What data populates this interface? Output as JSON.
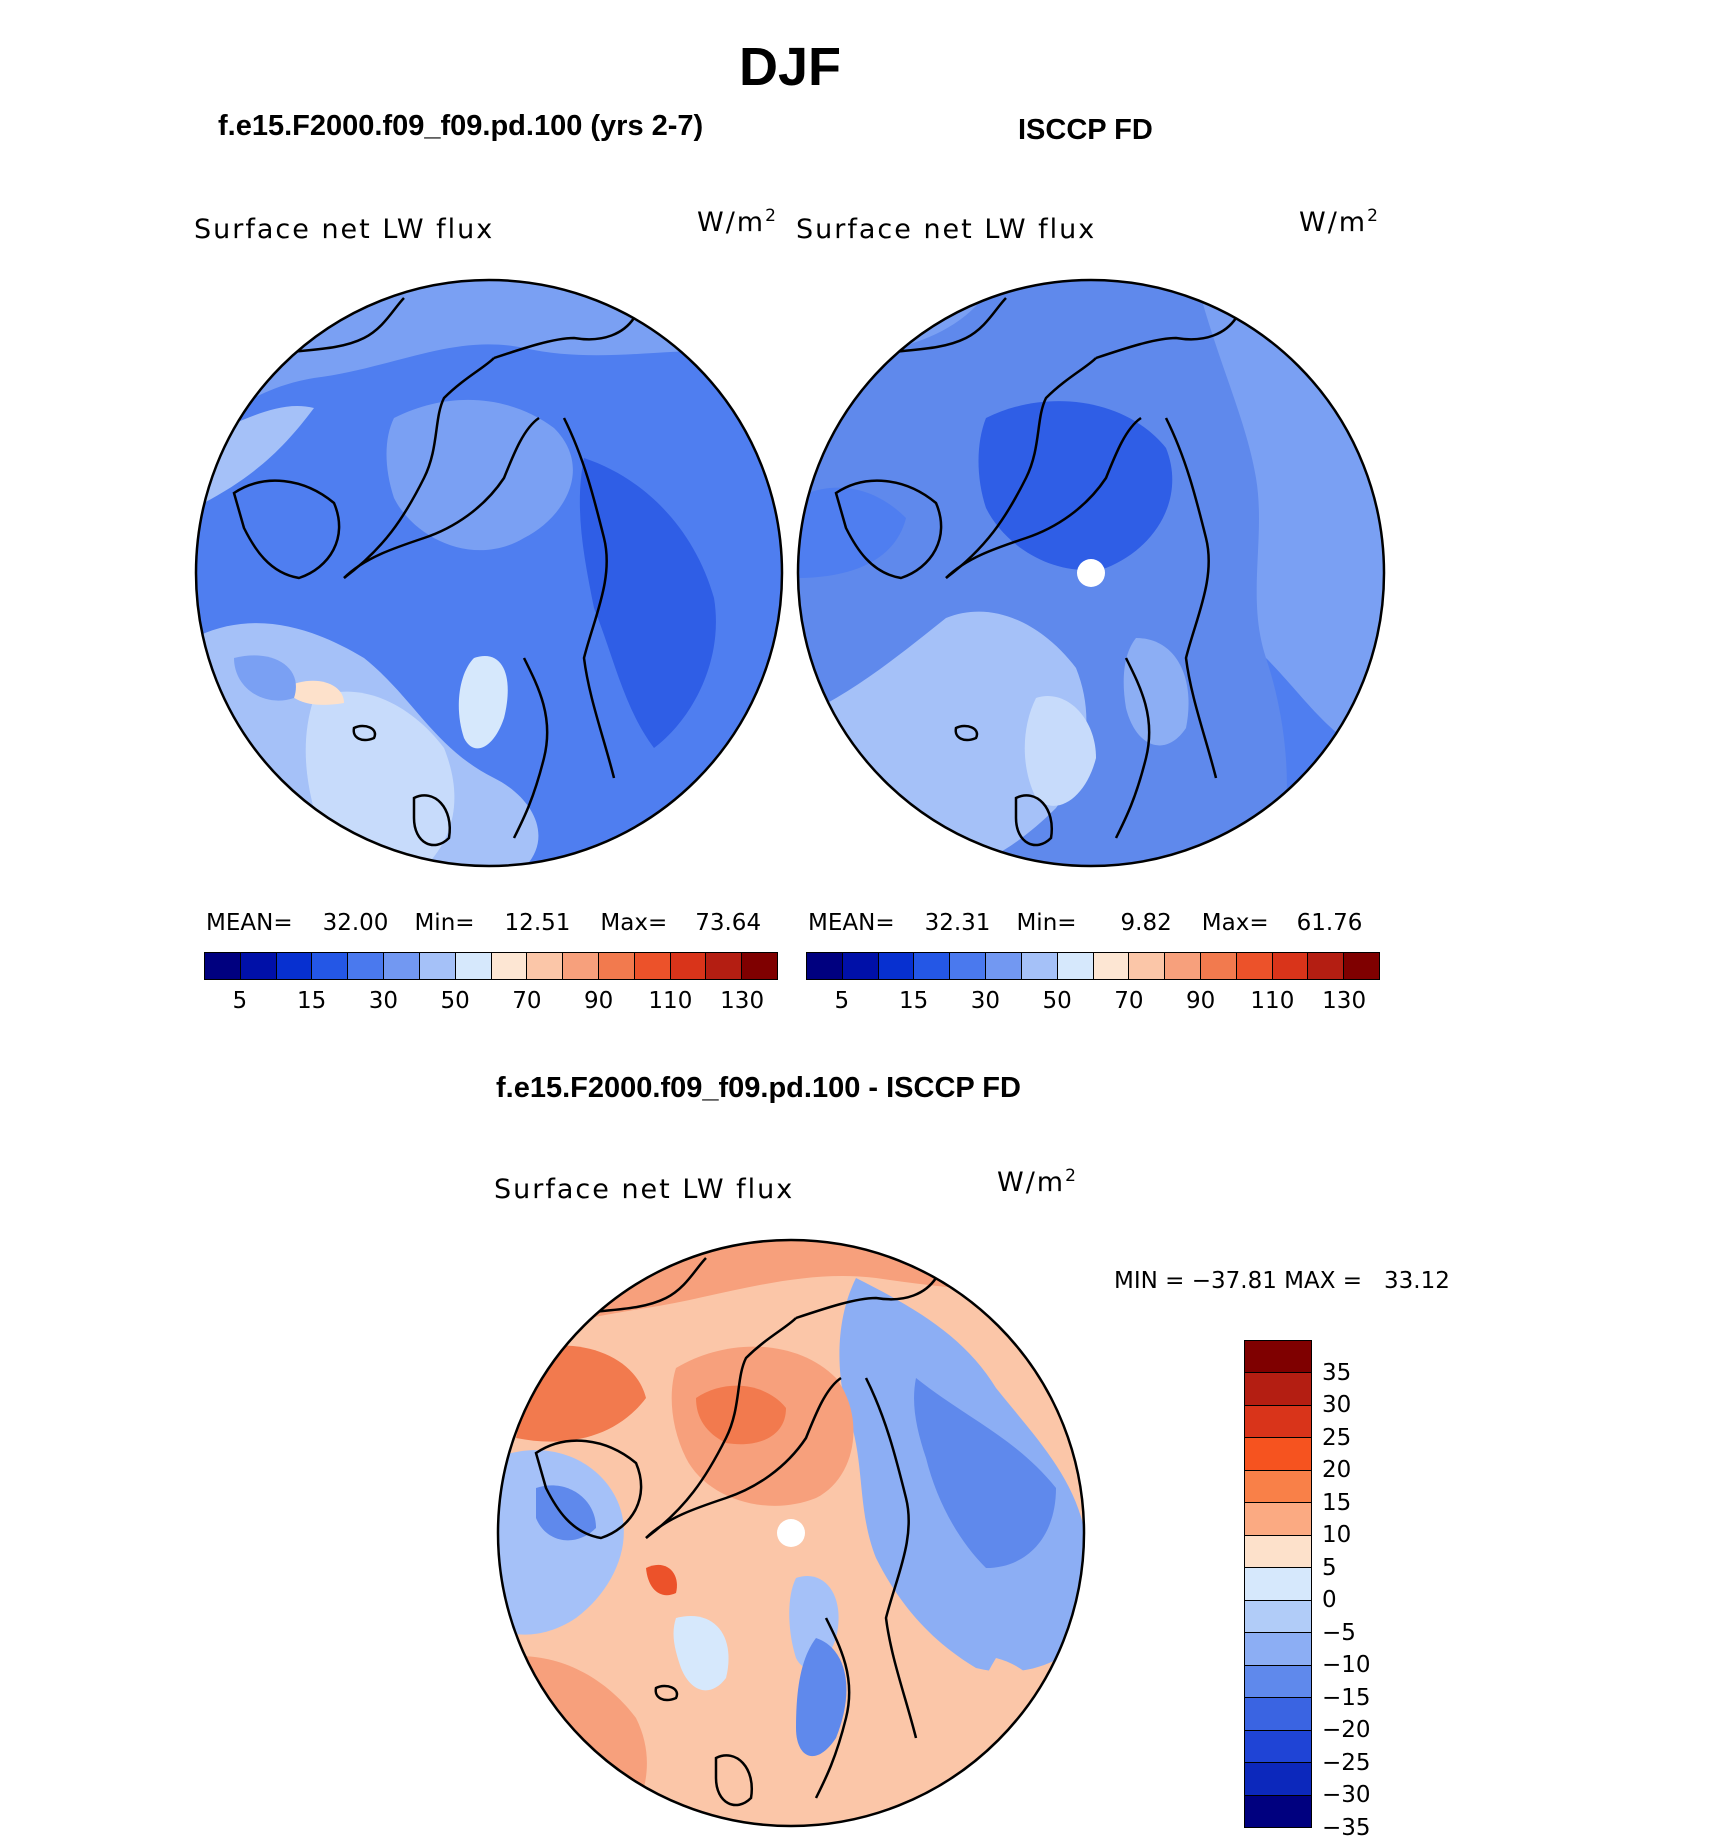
{
  "figure": {
    "title": "DJF"
  },
  "panels": [
    {
      "title": "f.e15.F2000.f09_f09.pd.100 (yrs 2-7)",
      "variable": "Surface net LW flux",
      "units": "W/m",
      "units_exp": "2",
      "mean_label": "MEAN=",
      "mean": "32.00",
      "min_label": "Min=",
      "min": "12.51",
      "max_label": "Max=",
      "max": "73.64"
    },
    {
      "title": "ISCCP FD",
      "variable": "Surface net LW flux",
      "units": "W/m",
      "units_exp": "2",
      "mean_label": "MEAN=",
      "mean": "32.31",
      "min_label": "Min=",
      "min": "9.82",
      "max_label": "Max=",
      "max": "61.76"
    },
    {
      "title": "f.e15.F2000.f09_f09.pd.100 - ISCCP FD",
      "variable": "Surface net LW flux",
      "units": "W/m",
      "units_exp": "2",
      "minmax_text": "MIN = −37.81 MAX =   33.12"
    }
  ],
  "colorbar_main": {
    "colors": [
      "#00007f",
      "#0010a8",
      "#0730d0",
      "#2457e6",
      "#4a79ee",
      "#7298f2",
      "#a5c1f8",
      "#d6e8fc",
      "#fde6d3",
      "#fbc6a8",
      "#f7a07c",
      "#f27a4e",
      "#ec522a",
      "#d9341a",
      "#b41e12",
      "#7f0000"
    ],
    "ticks": [
      "5",
      "15",
      "30",
      "50",
      "70",
      "90",
      "110",
      "130"
    ]
  },
  "colorbar_diff": {
    "colors": [
      "#7f0000",
      "#b41e12",
      "#d9341a",
      "#f6531f",
      "#f98048",
      "#fbaa82",
      "#fde1cb",
      "#d6e8fc",
      "#b1ccf8",
      "#8caef4",
      "#5f89ec",
      "#3a64e2",
      "#1f44d6",
      "#0c28bc",
      "#00007f"
    ],
    "ticks": [
      "35",
      "30",
      "25",
      "20",
      "15",
      "10",
      "5",
      "0",
      "−5",
      "−10",
      "−15",
      "−20",
      "−25",
      "−30",
      "−35"
    ]
  },
  "map_legend": {
    "pole_marker": "no-data-pole"
  }
}
